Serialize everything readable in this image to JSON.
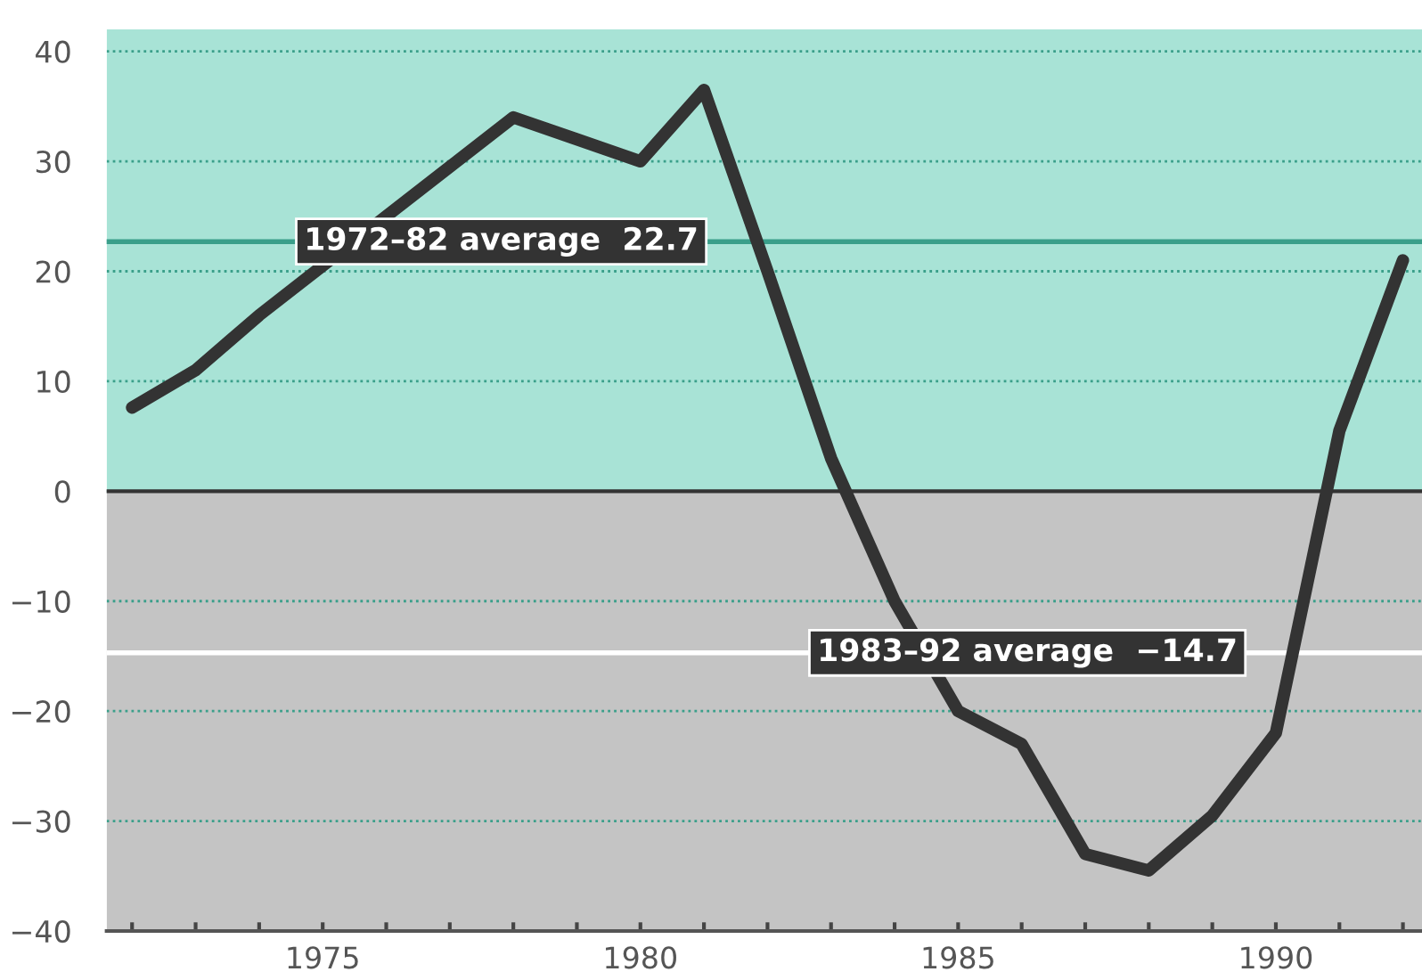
{
  "chart_data": {
    "type": "line",
    "x": [
      1972,
      1973,
      1974,
      1975,
      1976,
      1977,
      1978,
      1979,
      1980,
      1981,
      1982,
      1983,
      1984,
      1985,
      1986,
      1987,
      1988,
      1989,
      1990,
      1991,
      1992
    ],
    "series": [
      {
        "color": "#333333",
        "values": [
          7.6,
          11,
          16,
          20.5,
          25,
          29.5,
          34,
          32,
          30,
          36.5,
          20,
          3,
          -10,
          -20,
          -23,
          -33,
          -34.5,
          -29.5,
          -22,
          5.5,
          21
        ]
      }
    ],
    "xlim": [
      1971.6,
      1992.3
    ],
    "ylim": [
      -40,
      42
    ],
    "xticks": [
      {
        "value": 1972,
        "label": null
      },
      {
        "value": 1973,
        "label": null
      },
      {
        "value": 1974,
        "label": null
      },
      1975,
      {
        "value": 1976,
        "label": null
      },
      {
        "value": 1977,
        "label": null
      },
      {
        "value": 1978,
        "label": null
      },
      {
        "value": 1979,
        "label": null
      },
      1980,
      {
        "value": 1981,
        "label": null
      },
      {
        "value": 1982,
        "label": null
      },
      {
        "value": 1983,
        "label": null
      },
      {
        "value": 1984,
        "label": null
      },
      1985,
      {
        "value": 1986,
        "label": null
      },
      {
        "value": 1987,
        "label": null
      },
      {
        "value": 1988,
        "label": null
      },
      {
        "value": 1989,
        "label": null
      },
      1990,
      {
        "value": 1991,
        "label": null
      },
      {
        "value": 1992,
        "label": null
      }
    ],
    "yticks": [
      -40,
      -30,
      -20,
      -10,
      0,
      10,
      20,
      30,
      40
    ],
    "grid": "y",
    "marker": "none",
    "line_style": "solid",
    "legend": false,
    "bands": [
      {
        "axis": "y",
        "from": 0,
        "to": 42,
        "color": "#a8e3d6"
      },
      {
        "axis": "y",
        "from": -40,
        "to": 0,
        "color": "#c4c4c4"
      }
    ],
    "ref_lines": [
      {
        "axis": "y",
        "value": 22.7,
        "label": "1972–82 average  22.7",
        "color": "#3a9f8a"
      },
      {
        "axis": "y",
        "value": -14.7,
        "label": "1983–92 average  −14.7",
        "color": "#ffffff"
      },
      {
        "axis": "y",
        "value": 0,
        "color": "#333333"
      }
    ]
  }
}
